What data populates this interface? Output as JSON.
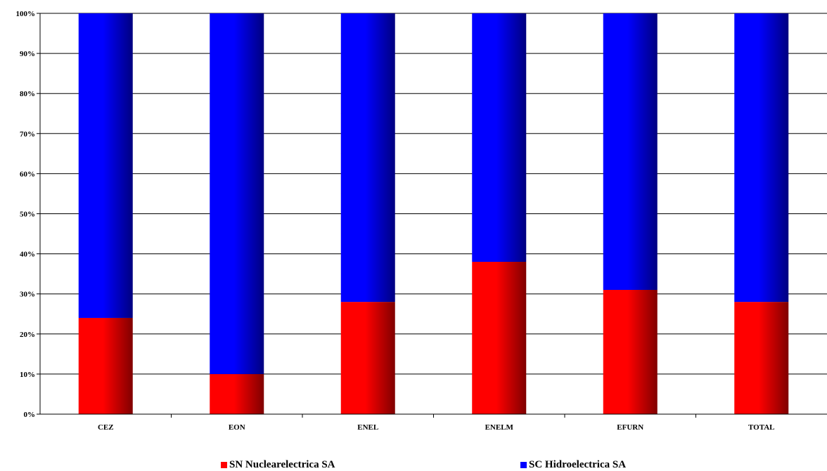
{
  "chart_data": {
    "type": "bar",
    "stacked": true,
    "normalized": true,
    "categories": [
      "CEZ",
      "EON",
      "ENEL",
      "ENELM",
      "EFURN",
      "TOTAL"
    ],
    "series": [
      {
        "name": "SN Nuclearelectrica SA",
        "color": "#ff0000",
        "values": [
          24,
          10,
          28,
          38,
          31,
          28
        ]
      },
      {
        "name": "SC Hidroelectrica SA",
        "color": "#0000ff",
        "values": [
          76,
          90,
          72,
          62,
          69,
          72
        ]
      }
    ],
    "ylim": [
      0,
      100
    ],
    "yticks": [
      "0%",
      "10%",
      "20%",
      "30%",
      "40%",
      "50%",
      "60%",
      "70%",
      "80%",
      "90%",
      "100%"
    ],
    "grid": true,
    "legend_position": "bottom",
    "xlabel": "",
    "ylabel": ""
  }
}
